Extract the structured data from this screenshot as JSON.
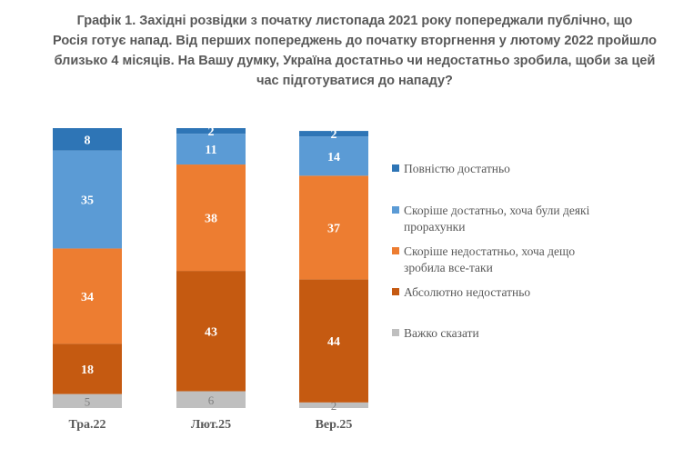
{
  "chart_data": {
    "type": "stacked-bar",
    "title_lines": [
      "Графік 1. Західні розвідки з початку листопада 2021 року попереджали публічно, що",
      "Росія готує напад. Від перших попереджень до початку вторгнення у лютому 2022 пройшло",
      "близько 4 місяців. На Вашу думку, Україна достатньо чи недостатньо зробила, щоби за цей",
      "час підготуватися до нападу?"
    ],
    "categories": [
      "Тра.22",
      "Лют.25",
      "Вер.25"
    ],
    "series": [
      {
        "name": "Повністю достатньо",
        "color": "#2E75B6",
        "values": [
          8,
          2,
          2
        ]
      },
      {
        "name": "Скоріше достатньо, хоча були деякі прорахунки",
        "legend_lines": [
          "Скоріше достатньо, хоча були деякі",
          "прорахунки"
        ],
        "color": "#5B9BD5",
        "values": [
          35,
          11,
          14
        ]
      },
      {
        "name": "Скоріше недостатньо, хоча дещо зробила все-таки",
        "legend_lines": [
          "Скоріше недостатньо, хоча дещо",
          "зробила все-таки"
        ],
        "color": "#ED7D31",
        "values": [
          34,
          38,
          37
        ]
      },
      {
        "name": "Абсолютно недостатньо",
        "color": "#C55A11",
        "values": [
          18,
          43,
          44
        ]
      },
      {
        "name": "Важко сказати",
        "color": "#BFBFBF",
        "values": [
          5,
          6,
          2
        ]
      }
    ],
    "stack_order_bottom_to_top": [
      "Важко сказати",
      "Абсолютно недостатньо",
      "Скоріше недостатньо, хоча дещо зробила все-таки",
      "Скоріше достатньо, хоча були деякі прорахунки",
      "Повністю достатньо"
    ],
    "ylim": [
      0,
      100
    ],
    "grid": false,
    "legend_position": "right",
    "data_labels": true
  }
}
